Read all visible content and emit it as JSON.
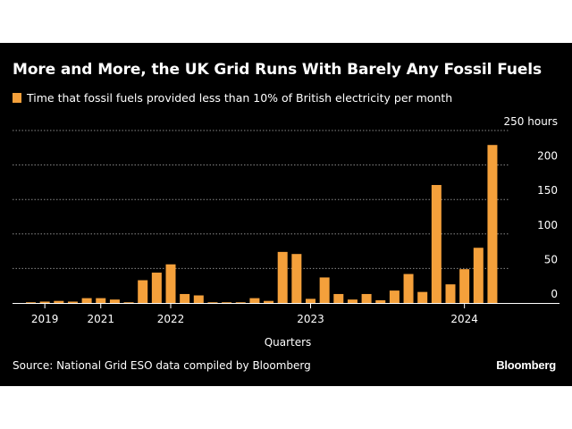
{
  "chart_data": {
    "type": "bar",
    "title": "More and More, the UK Grid Runs With Barely Any Fossil Fuels",
    "legend": [
      "Time that fossil fuels provided less than 10% of British electricity per month"
    ],
    "xlabel": "Quarters",
    "ylabel": "",
    "y_unit_label": "250 hours",
    "ylim": [
      0,
      250
    ],
    "y_ticks": [
      0,
      50,
      100,
      150,
      200,
      250
    ],
    "y_tick_labels": [
      "0",
      "50",
      "100",
      "150",
      "200",
      "250 hours"
    ],
    "x_tick_labels": [
      "2019",
      "2021",
      "2022",
      "2023",
      "2024"
    ],
    "x_tick_label_positions": [
      1,
      5,
      10,
      20,
      31
    ],
    "grid": true,
    "color": "#f4a03b",
    "values": [
      1,
      2,
      3,
      2,
      7,
      7,
      5,
      1,
      33,
      44,
      56,
      13,
      11,
      1,
      1,
      1,
      7,
      3,
      74,
      71,
      6,
      37,
      13,
      5,
      13,
      4,
      18,
      42,
      16,
      171,
      27,
      49,
      80,
      229
    ]
  },
  "source": "Source: National Grid ESO data compiled by Bloomberg",
  "brand": "Bloomberg"
}
